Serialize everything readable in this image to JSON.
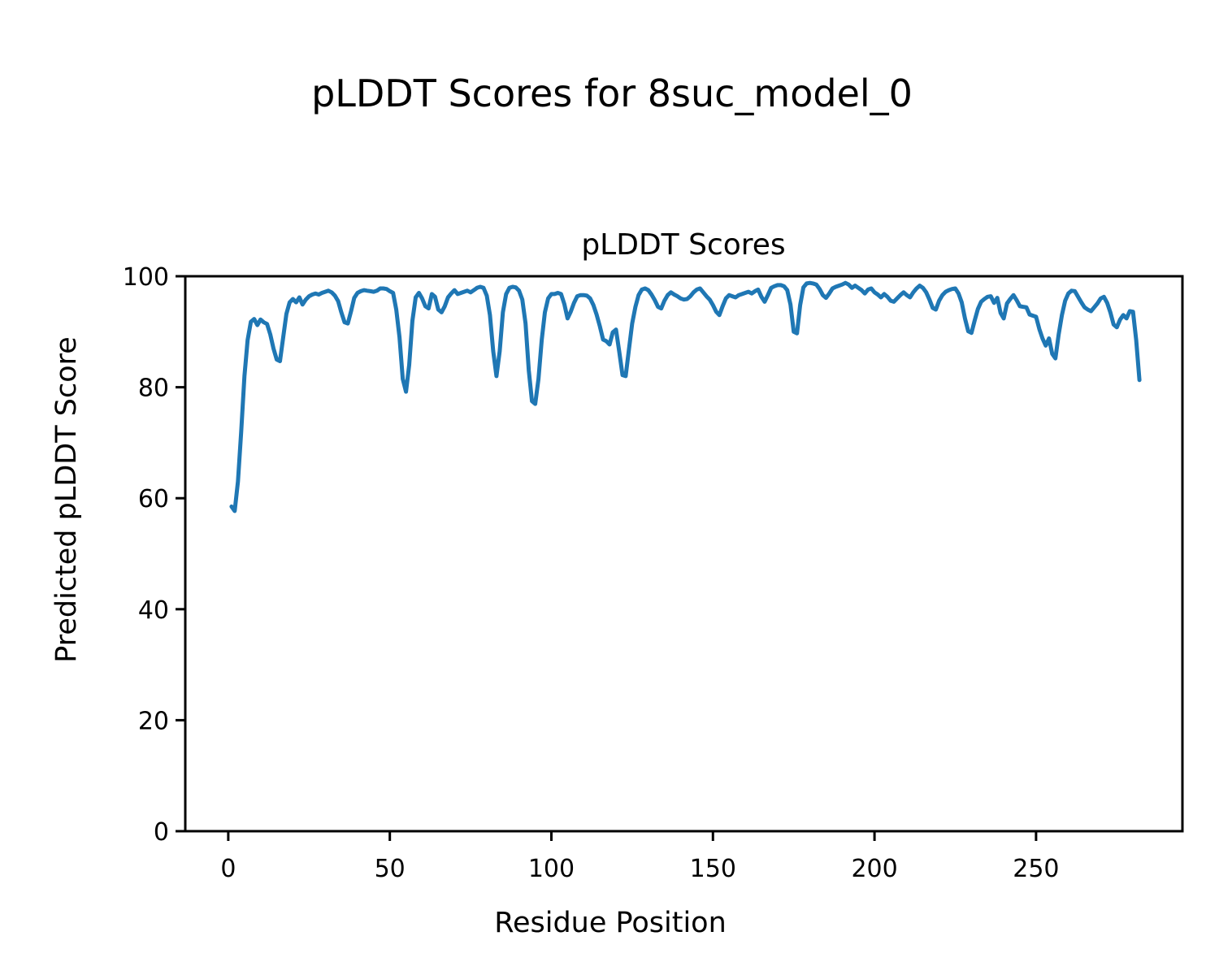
{
  "figure": {
    "suptitle": "pLDDT Scores for 8suc_model_0",
    "axes_title": "pLDDT Scores",
    "xlabel": "Residue Position",
    "ylabel": "Predicted pLDDT Score"
  },
  "colors": {
    "line": "#1f77b4",
    "spine": "#000000",
    "text": "#000000",
    "background": "#ffffff"
  },
  "chart_data": {
    "type": "line",
    "title": "pLDDT Scores",
    "suptitle": "pLDDT Scores for 8suc_model_0",
    "xlabel": "Residue Position",
    "ylabel": "Predicted pLDDT Score",
    "grid": false,
    "legend": false,
    "xlim": [
      -13.3,
      295.3
    ],
    "ylim": [
      0,
      100
    ],
    "x_ticks": [
      0,
      50,
      100,
      150,
      200,
      250
    ],
    "y_ticks": [
      0,
      20,
      40,
      60,
      80,
      100
    ],
    "series": [
      {
        "name": "pLDDT",
        "x_start": 1,
        "x_step": 1,
        "y": [
          58.5,
          57.7,
          63.0,
          72.0,
          82.0,
          88.5,
          91.8,
          92.3,
          91.2,
          92.2,
          91.7,
          91.4,
          89.5,
          87.0,
          85.0,
          84.7,
          89.0,
          93.2,
          95.3,
          95.9,
          95.3,
          96.2,
          94.9,
          95.8,
          96.4,
          96.7,
          96.9,
          96.7,
          97.0,
          97.2,
          97.4,
          97.1,
          96.5,
          95.5,
          93.5,
          91.7,
          91.5,
          93.7,
          96.1,
          97.0,
          97.3,
          97.5,
          97.4,
          97.3,
          97.2,
          97.4,
          97.8,
          97.8,
          97.7,
          97.3,
          97.0,
          94.0,
          89.0,
          81.5,
          79.2,
          84.0,
          92.0,
          96.2,
          97.0,
          96.0,
          94.6,
          94.2,
          96.8,
          96.3,
          94.0,
          93.5,
          94.6,
          96.2,
          96.9,
          97.5,
          96.8,
          97.0,
          97.2,
          97.4,
          97.1,
          97.5,
          97.9,
          98.1,
          97.9,
          96.5,
          93.0,
          86.5,
          82.0,
          86.5,
          93.5,
          96.8,
          97.9,
          98.1,
          98.0,
          97.4,
          95.8,
          91.5,
          83.0,
          77.5,
          77.0,
          81.5,
          88.5,
          93.5,
          96.0,
          96.8,
          96.8,
          97.0,
          96.8,
          95.0,
          92.4,
          93.6,
          95.2,
          96.4,
          96.6,
          96.6,
          96.5,
          96.0,
          94.8,
          93.1,
          91.0,
          88.6,
          88.3,
          87.7,
          89.9,
          90.4,
          86.4,
          82.2,
          82.0,
          86.8,
          91.5,
          94.5,
          96.6,
          97.6,
          97.8,
          97.5,
          96.7,
          95.7,
          94.5,
          94.2,
          95.6,
          96.6,
          97.1,
          96.7,
          96.4,
          96.0,
          95.8,
          95.9,
          96.4,
          97.1,
          97.6,
          97.8,
          97.1,
          96.4,
          95.8,
          94.8,
          93.6,
          93.0,
          94.6,
          96.0,
          96.6,
          96.4,
          96.2,
          96.6,
          96.8,
          97.0,
          97.2,
          96.9,
          97.3,
          97.6,
          96.3,
          95.4,
          96.6,
          97.9,
          98.2,
          98.4,
          98.4,
          98.2,
          97.5,
          94.9,
          90.0,
          89.7,
          94.8,
          98.0,
          98.7,
          98.8,
          98.7,
          98.5,
          97.7,
          96.6,
          96.1,
          96.9,
          97.8,
          98.1,
          98.3,
          98.5,
          98.8,
          98.5,
          97.9,
          98.3,
          97.9,
          97.5,
          96.9,
          97.6,
          97.8,
          97.1,
          96.7,
          96.2,
          96.8,
          96.3,
          95.6,
          95.4,
          96.0,
          96.6,
          97.1,
          96.6,
          96.2,
          97.1,
          97.8,
          98.3,
          97.9,
          97.1,
          95.8,
          94.3,
          94.0,
          95.6,
          96.6,
          97.2,
          97.5,
          97.7,
          97.8,
          96.9,
          95.3,
          92.4,
          90.1,
          89.8,
          92.0,
          94.1,
          95.4,
          95.9,
          96.3,
          96.4,
          95.2,
          96.1,
          93.4,
          92.4,
          95.1,
          95.9,
          96.6,
          95.7,
          94.6,
          94.5,
          94.4,
          93.1,
          92.9,
          92.7,
          90.5,
          88.8,
          87.5,
          88.8,
          86.0,
          85.2,
          89.5,
          93.0,
          95.6,
          96.9,
          97.4,
          97.3,
          96.3,
          95.3,
          94.4,
          94.0,
          93.7,
          94.4,
          95.1,
          96.0,
          96.3,
          95.2,
          93.5,
          91.3,
          90.8,
          92.2,
          93.0,
          92.4,
          93.7,
          93.6,
          88.5,
          81.3
        ]
      }
    ]
  }
}
